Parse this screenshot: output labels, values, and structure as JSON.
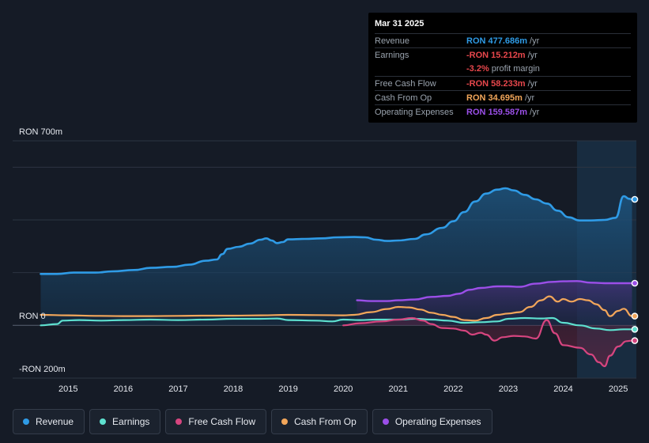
{
  "tooltip": {
    "date": "Mar 31 2025",
    "rows": {
      "revenue": {
        "label": "Revenue",
        "value": "RON 477.686m",
        "unit": "/yr",
        "color": "#2f9be6"
      },
      "earnings": {
        "label": "Earnings",
        "value": "-RON 15.212m",
        "unit": "/yr",
        "color": "#e8474c"
      },
      "margin": {
        "value": "-3.2%",
        "unit": "profit margin",
        "color": "#e8474c"
      },
      "fcf": {
        "label": "Free Cash Flow",
        "value": "-RON 58.233m",
        "unit": "/yr",
        "color": "#e8474c"
      },
      "cfo": {
        "label": "Cash From Op",
        "value": "RON 34.695m",
        "unit": "/yr",
        "color": "#f2a65a"
      },
      "opex": {
        "label": "Operating Expenses",
        "value": "RON 159.587m",
        "unit": "/yr",
        "color": "#9b4fe8"
      }
    }
  },
  "legend": [
    {
      "label": "Revenue",
      "color": "#2f9be6"
    },
    {
      "label": "Earnings",
      "color": "#5ee0cf"
    },
    {
      "label": "Free Cash Flow",
      "color": "#d6457f"
    },
    {
      "label": "Cash From Op",
      "color": "#f2a65a"
    },
    {
      "label": "Operating Expenses",
      "color": "#9b4fe8"
    }
  ],
  "chart_data": {
    "type": "area",
    "title": "",
    "y_unit_labels": {
      "top": "RON 700m",
      "zero": "RON 0",
      "bottom": "-RON 200m"
    },
    "ylim": [
      -200,
      700
    ],
    "xlim": [
      2014.45,
      2025.3
    ],
    "x_ticks": [
      "2015",
      "2016",
      "2017",
      "2018",
      "2019",
      "2020",
      "2021",
      "2022",
      "2023",
      "2024",
      "2025"
    ],
    "highlight_from": 2024.25,
    "series": [
      {
        "name": "Revenue",
        "color": "#2f9be6",
        "points": [
          [
            2014.5,
            195
          ],
          [
            2014.8,
            195
          ],
          [
            2015.1,
            200
          ],
          [
            2015.5,
            200
          ],
          [
            2015.8,
            205
          ],
          [
            2016.2,
            210
          ],
          [
            2016.5,
            218
          ],
          [
            2016.9,
            222
          ],
          [
            2017.2,
            230
          ],
          [
            2017.5,
            245
          ],
          [
            2017.7,
            250
          ],
          [
            2017.8,
            270
          ],
          [
            2017.9,
            290
          ],
          [
            2018.1,
            298
          ],
          [
            2018.3,
            310
          ],
          [
            2018.5,
            325
          ],
          [
            2018.6,
            330
          ],
          [
            2018.7,
            322
          ],
          [
            2018.8,
            312
          ],
          [
            2018.9,
            316
          ],
          [
            2019.0,
            326
          ],
          [
            2019.3,
            328
          ],
          [
            2019.6,
            330
          ],
          [
            2019.9,
            334
          ],
          [
            2020.2,
            335
          ],
          [
            2020.4,
            334
          ],
          [
            2020.6,
            325
          ],
          [
            2020.8,
            320
          ],
          [
            2021.0,
            322
          ],
          [
            2021.3,
            328
          ],
          [
            2021.5,
            345
          ],
          [
            2021.8,
            370
          ],
          [
            2022.0,
            395
          ],
          [
            2022.2,
            430
          ],
          [
            2022.4,
            470
          ],
          [
            2022.6,
            500
          ],
          [
            2022.8,
            515
          ],
          [
            2022.95,
            520
          ],
          [
            2023.1,
            512
          ],
          [
            2023.3,
            495
          ],
          [
            2023.5,
            478
          ],
          [
            2023.7,
            462
          ],
          [
            2023.9,
            435
          ],
          [
            2024.1,
            410
          ],
          [
            2024.3,
            398
          ],
          [
            2024.5,
            398
          ],
          [
            2024.75,
            400
          ],
          [
            2024.95,
            408
          ],
          [
            2025.1,
            490
          ],
          [
            2025.2,
            480
          ],
          [
            2025.25,
            478
          ]
        ]
      },
      {
        "name": "Operating Expenses",
        "color": "#9b4fe8",
        "points": [
          [
            2020.25,
            95
          ],
          [
            2020.5,
            92
          ],
          [
            2020.8,
            92
          ],
          [
            2021.0,
            95
          ],
          [
            2021.3,
            98
          ],
          [
            2021.6,
            108
          ],
          [
            2021.9,
            112
          ],
          [
            2022.1,
            120
          ],
          [
            2022.3,
            135
          ],
          [
            2022.5,
            142
          ],
          [
            2022.8,
            148
          ],
          [
            2023.0,
            148
          ],
          [
            2023.2,
            146
          ],
          [
            2023.5,
            158
          ],
          [
            2023.8,
            165
          ],
          [
            2024.0,
            167
          ],
          [
            2024.25,
            168
          ],
          [
            2024.5,
            162
          ],
          [
            2024.8,
            160
          ],
          [
            2025.0,
            160
          ],
          [
            2025.25,
            160
          ]
        ]
      },
      {
        "name": "Cash From Op",
        "color": "#f2a65a",
        "points": [
          [
            2014.5,
            40
          ],
          [
            2015.0,
            38
          ],
          [
            2015.5,
            36
          ],
          [
            2016.0,
            35
          ],
          [
            2016.5,
            35
          ],
          [
            2017.0,
            36
          ],
          [
            2017.5,
            37
          ],
          [
            2018.0,
            37
          ],
          [
            2018.5,
            38
          ],
          [
            2019.0,
            40
          ],
          [
            2019.5,
            39
          ],
          [
            2020.0,
            38
          ],
          [
            2020.2,
            40
          ],
          [
            2020.5,
            50
          ],
          [
            2020.8,
            62
          ],
          [
            2021.0,
            70
          ],
          [
            2021.2,
            68
          ],
          [
            2021.4,
            60
          ],
          [
            2021.6,
            48
          ],
          [
            2021.8,
            40
          ],
          [
            2022.0,
            32
          ],
          [
            2022.2,
            20
          ],
          [
            2022.4,
            18
          ],
          [
            2022.6,
            28
          ],
          [
            2022.8,
            40
          ],
          [
            2023.0,
            45
          ],
          [
            2023.2,
            50
          ],
          [
            2023.4,
            70
          ],
          [
            2023.6,
            95
          ],
          [
            2023.75,
            110
          ],
          [
            2023.9,
            90
          ],
          [
            2024.0,
            100
          ],
          [
            2024.15,
            90
          ],
          [
            2024.3,
            100
          ],
          [
            2024.45,
            95
          ],
          [
            2024.6,
            80
          ],
          [
            2024.75,
            58
          ],
          [
            2024.85,
            35
          ],
          [
            2025.0,
            55
          ],
          [
            2025.1,
            63
          ],
          [
            2025.25,
            35
          ]
        ]
      },
      {
        "name": "Earnings",
        "color": "#5ee0cf",
        "points": [
          [
            2014.5,
            0
          ],
          [
            2014.8,
            5
          ],
          [
            2014.9,
            18
          ],
          [
            2015.2,
            20
          ],
          [
            2015.6,
            18
          ],
          [
            2016.0,
            20
          ],
          [
            2016.5,
            22
          ],
          [
            2017.0,
            20
          ],
          [
            2017.5,
            22
          ],
          [
            2018.0,
            25
          ],
          [
            2018.5,
            25
          ],
          [
            2018.8,
            26
          ],
          [
            2019.0,
            20
          ],
          [
            2019.5,
            18
          ],
          [
            2019.8,
            15
          ],
          [
            2020.0,
            22
          ],
          [
            2020.3,
            20
          ],
          [
            2020.6,
            22
          ],
          [
            2021.0,
            22
          ],
          [
            2021.3,
            25
          ],
          [
            2021.6,
            22
          ],
          [
            2021.9,
            18
          ],
          [
            2022.2,
            10
          ],
          [
            2022.5,
            12
          ],
          [
            2022.8,
            15
          ],
          [
            2023.0,
            25
          ],
          [
            2023.3,
            28
          ],
          [
            2023.6,
            26
          ],
          [
            2023.8,
            28
          ],
          [
            2024.0,
            10
          ],
          [
            2024.3,
            0
          ],
          [
            2024.6,
            -12
          ],
          [
            2024.85,
            -18
          ],
          [
            2025.1,
            -15
          ],
          [
            2025.25,
            -15
          ]
        ]
      },
      {
        "name": "Free Cash Flow",
        "color": "#d6457f",
        "points": [
          [
            2020.0,
            0
          ],
          [
            2020.3,
            8
          ],
          [
            2020.7,
            15
          ],
          [
            2021.0,
            22
          ],
          [
            2021.25,
            28
          ],
          [
            2021.45,
            18
          ],
          [
            2021.6,
            5
          ],
          [
            2021.8,
            -10
          ],
          [
            2022.0,
            -12
          ],
          [
            2022.2,
            -20
          ],
          [
            2022.35,
            -35
          ],
          [
            2022.5,
            -28
          ],
          [
            2022.6,
            -35
          ],
          [
            2022.75,
            -58
          ],
          [
            2022.9,
            -45
          ],
          [
            2023.1,
            -40
          ],
          [
            2023.3,
            -42
          ],
          [
            2023.5,
            -50
          ],
          [
            2023.7,
            20
          ],
          [
            2023.85,
            -30
          ],
          [
            2024.0,
            -75
          ],
          [
            2024.3,
            -85
          ],
          [
            2024.5,
            -110
          ],
          [
            2024.65,
            -140
          ],
          [
            2024.75,
            -155
          ],
          [
            2024.85,
            -115
          ],
          [
            2025.0,
            -80
          ],
          [
            2025.15,
            -60
          ],
          [
            2025.25,
            -58
          ]
        ]
      }
    ]
  }
}
